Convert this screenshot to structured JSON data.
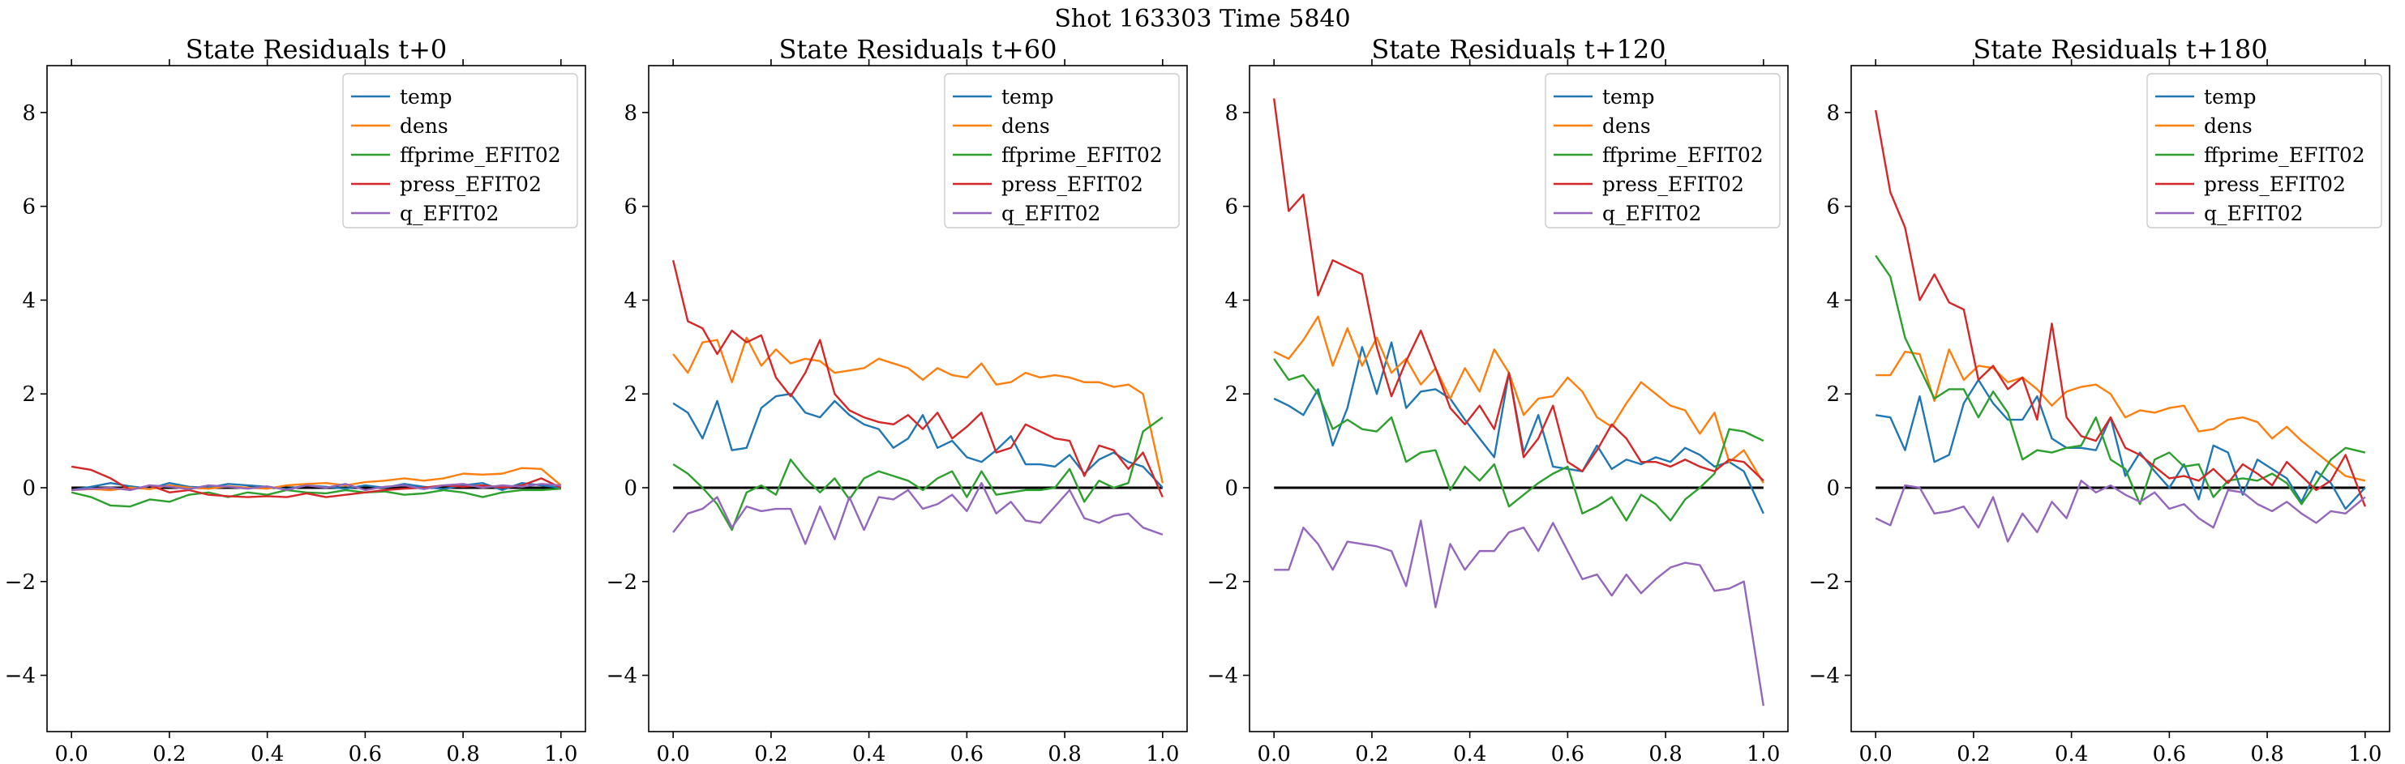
{
  "figure_title": "Shot 163303   Time 5840",
  "series_colors": {
    "temp": "#1f77b4",
    "dens": "#ff7f0e",
    "ffprime_EFIT02": "#2ca02c",
    "press_EFIT02": "#d62728",
    "q_EFIT02": "#9467bd"
  },
  "reference_line_color": "#000000",
  "chart_data": [
    {
      "type": "line",
      "title": "State Residuals t+0",
      "xlabel": "",
      "ylabel": "",
      "xlim": [
        -0.05,
        1.05
      ],
      "ylim": [
        -5.2,
        9.0
      ],
      "xticks": [
        0.0,
        0.2,
        0.4,
        0.6,
        0.8,
        1.0
      ],
      "xtick_labels": [
        "0.0",
        "0.2",
        "0.4",
        "0.6",
        "0.8",
        "1.0"
      ],
      "yticks": [
        -4,
        -2,
        0,
        2,
        4,
        6,
        8
      ],
      "ytick_labels": [
        "−4",
        "−2",
        "0",
        "2",
        "4",
        "6",
        "8"
      ],
      "legend_placement": "top-right",
      "reference_line": {
        "y": 0,
        "x": [
          0.0,
          1.0
        ]
      },
      "x": [
        0.0,
        0.04,
        0.08,
        0.12,
        0.16,
        0.2,
        0.24,
        0.28,
        0.32,
        0.36,
        0.4,
        0.44,
        0.48,
        0.52,
        0.56,
        0.6,
        0.64,
        0.68,
        0.72,
        0.76,
        0.8,
        0.84,
        0.88,
        0.92,
        0.96,
        1.0
      ],
      "series": [
        {
          "name": "temp",
          "values": [
            -0.05,
            0.02,
            0.1,
            0.03,
            -0.02,
            0.1,
            0.02,
            0.0,
            0.08,
            0.05,
            0.02,
            -0.03,
            0.05,
            0.02,
            -0.02,
            0.05,
            0.0,
            0.08,
            0.02,
            -0.03,
            0.05,
            0.1,
            -0.05,
            0.1,
            0.05,
            0.0
          ]
        },
        {
          "name": "dens",
          "values": [
            -0.05,
            -0.03,
            -0.05,
            0.0,
            -0.03,
            0.05,
            0.0,
            -0.02,
            0.03,
            0.0,
            -0.02,
            0.05,
            0.08,
            0.1,
            0.05,
            0.12,
            0.15,
            0.2,
            0.15,
            0.2,
            0.3,
            0.28,
            0.3,
            0.42,
            0.4,
            0.05
          ]
        },
        {
          "name": "ffprime_EFIT02",
          "values": [
            -0.1,
            -0.2,
            -0.38,
            -0.4,
            -0.25,
            -0.3,
            -0.15,
            -0.1,
            -0.2,
            -0.1,
            -0.15,
            -0.05,
            -0.1,
            -0.12,
            -0.05,
            -0.1,
            -0.08,
            -0.15,
            -0.12,
            -0.05,
            -0.1,
            -0.2,
            -0.1,
            -0.05,
            -0.05,
            -0.02
          ]
        },
        {
          "name": "press_EFIT02",
          "values": [
            0.45,
            0.38,
            0.2,
            -0.05,
            0.05,
            -0.1,
            -0.05,
            -0.15,
            -0.18,
            -0.2,
            -0.18,
            -0.2,
            -0.12,
            -0.2,
            -0.15,
            -0.1,
            -0.05,
            -0.02,
            0.0,
            0.05,
            0.02,
            0.05,
            0.0,
            0.05,
            0.2,
            0.0
          ]
        },
        {
          "name": "q_EFIT02",
          "values": [
            -0.05,
            -0.02,
            0.0,
            -0.05,
            0.05,
            0.02,
            -0.03,
            0.05,
            0.02,
            -0.02,
            0.03,
            -0.05,
            0.05,
            0.0,
            0.08,
            -0.05,
            0.02,
            0.05,
            -0.03,
            0.05,
            0.08,
            0.0,
            0.05,
            0.02,
            0.08,
            0.05
          ]
        }
      ]
    },
    {
      "type": "line",
      "title": "State Residuals t+60",
      "xlabel": "",
      "ylabel": "",
      "xlim": [
        -0.05,
        1.05
      ],
      "ylim": [
        -5.2,
        9.0
      ],
      "xticks": [
        0.0,
        0.2,
        0.4,
        0.6,
        0.8,
        1.0
      ],
      "xtick_labels": [
        "0.0",
        "0.2",
        "0.4",
        "0.6",
        "0.8",
        "1.0"
      ],
      "yticks": [
        -4,
        -2,
        0,
        2,
        4,
        6,
        8
      ],
      "ytick_labels": [
        "−4",
        "−2",
        "0",
        "2",
        "4",
        "6",
        "8"
      ],
      "legend_placement": "top-right",
      "reference_line": {
        "y": 0,
        "x": [
          0.0,
          1.0
        ]
      },
      "x": [
        0.0,
        0.03,
        0.06,
        0.09,
        0.12,
        0.15,
        0.18,
        0.21,
        0.24,
        0.27,
        0.3,
        0.33,
        0.36,
        0.39,
        0.42,
        0.45,
        0.48,
        0.51,
        0.54,
        0.57,
        0.6,
        0.63,
        0.66,
        0.69,
        0.72,
        0.75,
        0.78,
        0.81,
        0.84,
        0.87,
        0.9,
        0.93,
        0.96,
        1.0
      ],
      "series": [
        {
          "name": "temp",
          "values": [
            1.8,
            1.6,
            1.05,
            1.85,
            0.8,
            0.85,
            1.7,
            1.95,
            2.0,
            1.6,
            1.5,
            1.85,
            1.55,
            1.35,
            1.25,
            0.85,
            1.05,
            1.55,
            0.85,
            1.0,
            0.65,
            0.55,
            0.8,
            1.1,
            0.5,
            0.5,
            0.45,
            0.7,
            0.3,
            0.6,
            0.75,
            0.55,
            0.45,
            0.0
          ]
        },
        {
          "name": "dens",
          "values": [
            2.85,
            2.45,
            3.1,
            3.15,
            2.25,
            3.2,
            2.6,
            2.95,
            2.65,
            2.75,
            2.7,
            2.45,
            2.5,
            2.55,
            2.75,
            2.65,
            2.55,
            2.3,
            2.55,
            2.4,
            2.35,
            2.65,
            2.2,
            2.25,
            2.45,
            2.35,
            2.4,
            2.35,
            2.25,
            2.25,
            2.15,
            2.2,
            2.0,
            0.1
          ]
        },
        {
          "name": "ffprime_EFIT02",
          "values": [
            0.5,
            0.3,
            0.0,
            -0.35,
            -0.9,
            -0.1,
            0.05,
            -0.15,
            0.6,
            0.2,
            -0.1,
            0.2,
            -0.25,
            0.2,
            0.35,
            0.25,
            0.15,
            -0.05,
            0.2,
            0.35,
            -0.2,
            0.35,
            -0.15,
            -0.1,
            -0.05,
            -0.05,
            0.0,
            0.4,
            -0.3,
            0.15,
            0.0,
            0.1,
            1.2,
            1.5
          ]
        },
        {
          "name": "press_EFIT02",
          "values": [
            4.85,
            3.55,
            3.4,
            2.85,
            3.35,
            3.1,
            3.25,
            2.35,
            1.95,
            2.45,
            3.15,
            2.0,
            1.65,
            1.5,
            1.4,
            1.35,
            1.55,
            1.25,
            1.6,
            1.05,
            1.3,
            1.6,
            0.75,
            0.85,
            1.35,
            1.2,
            1.05,
            1.0,
            0.25,
            0.9,
            0.8,
            0.4,
            0.75,
            -0.2
          ]
        },
        {
          "name": "q_EFIT02",
          "values": [
            -0.95,
            -0.55,
            -0.45,
            -0.2,
            -0.85,
            -0.4,
            -0.5,
            -0.45,
            -0.45,
            -1.2,
            -0.4,
            -1.1,
            -0.2,
            -0.9,
            -0.2,
            -0.25,
            -0.05,
            -0.45,
            -0.35,
            -0.15,
            -0.5,
            0.1,
            -0.55,
            -0.3,
            -0.7,
            -0.75,
            -0.4,
            -0.05,
            -0.65,
            -0.75,
            -0.6,
            -0.55,
            -0.85,
            -1.0
          ]
        }
      ]
    },
    {
      "type": "line",
      "title": "State Residuals t+120",
      "xlabel": "",
      "ylabel": "",
      "xlim": [
        -0.05,
        1.05
      ],
      "ylim": [
        -5.2,
        9.0
      ],
      "xticks": [
        0.0,
        0.2,
        0.4,
        0.6,
        0.8,
        1.0
      ],
      "xtick_labels": [
        "0.0",
        "0.2",
        "0.4",
        "0.6",
        "0.8",
        "1.0"
      ],
      "yticks": [
        -4,
        -2,
        0,
        2,
        4,
        6,
        8
      ],
      "ytick_labels": [
        "−4",
        "−2",
        "0",
        "2",
        "4",
        "6",
        "8"
      ],
      "legend_placement": "top-right",
      "reference_line": {
        "y": 0,
        "x": [
          0.0,
          1.0
        ]
      },
      "x": [
        0.0,
        0.03,
        0.06,
        0.09,
        0.12,
        0.15,
        0.18,
        0.21,
        0.24,
        0.27,
        0.3,
        0.33,
        0.36,
        0.39,
        0.42,
        0.45,
        0.48,
        0.51,
        0.54,
        0.57,
        0.6,
        0.63,
        0.66,
        0.69,
        0.72,
        0.75,
        0.78,
        0.81,
        0.84,
        0.87,
        0.9,
        0.93,
        0.96,
        1.0
      ],
      "series": [
        {
          "name": "temp",
          "values": [
            1.9,
            1.75,
            1.55,
            2.1,
            0.9,
            1.7,
            3.0,
            2.0,
            3.1,
            1.7,
            2.05,
            2.1,
            1.9,
            1.45,
            1.05,
            0.65,
            2.45,
            0.75,
            1.55,
            0.45,
            0.4,
            0.35,
            0.9,
            0.4,
            0.6,
            0.5,
            0.65,
            0.55,
            0.85,
            0.7,
            0.45,
            0.55,
            0.35,
            -0.55
          ]
        },
        {
          "name": "dens",
          "values": [
            2.9,
            2.75,
            3.15,
            3.65,
            2.6,
            3.4,
            2.6,
            3.2,
            2.45,
            2.75,
            2.2,
            2.55,
            1.9,
            2.55,
            2.05,
            2.95,
            2.45,
            1.55,
            1.9,
            1.95,
            2.35,
            2.05,
            1.5,
            1.3,
            1.8,
            2.25,
            2.0,
            1.75,
            1.65,
            1.15,
            1.6,
            0.55,
            0.8,
            0.1
          ]
        },
        {
          "name": "ffprime_EFIT02",
          "values": [
            2.75,
            2.3,
            2.4,
            2.0,
            1.25,
            1.45,
            1.25,
            1.2,
            1.5,
            0.55,
            0.75,
            0.8,
            -0.05,
            0.45,
            0.15,
            0.5,
            -0.4,
            -0.15,
            0.1,
            0.3,
            0.45,
            -0.55,
            -0.4,
            -0.2,
            -0.7,
            -0.15,
            -0.35,
            -0.7,
            -0.25,
            0.0,
            0.3,
            1.25,
            1.2,
            1.0
          ]
        },
        {
          "name": "press_EFIT02",
          "values": [
            8.3,
            5.9,
            6.25,
            4.1,
            4.85,
            4.7,
            4.55,
            3.0,
            1.95,
            2.7,
            3.35,
            2.55,
            1.7,
            1.35,
            1.75,
            1.25,
            2.45,
            0.65,
            1.05,
            1.75,
            0.55,
            0.35,
            0.8,
            1.35,
            1.05,
            0.55,
            0.55,
            0.45,
            0.6,
            0.45,
            0.35,
            0.6,
            0.55,
            0.15
          ]
        },
        {
          "name": "q_EFIT02",
          "values": [
            -1.75,
            -1.75,
            -0.85,
            -1.2,
            -1.75,
            -1.15,
            -1.2,
            -1.25,
            -1.35,
            -2.1,
            -0.7,
            -2.55,
            -1.2,
            -1.75,
            -1.35,
            -1.35,
            -0.95,
            -0.85,
            -1.35,
            -0.75,
            -1.35,
            -1.95,
            -1.85,
            -2.3,
            -1.85,
            -2.25,
            -1.95,
            -1.7,
            -1.6,
            -1.65,
            -2.2,
            -2.15,
            -2.0,
            -4.65
          ]
        }
      ]
    },
    {
      "type": "line",
      "title": "State Residuals t+180",
      "xlabel": "",
      "ylabel": "",
      "xlim": [
        -0.05,
        1.05
      ],
      "ylim": [
        -5.2,
        9.0
      ],
      "xticks": [
        0.0,
        0.2,
        0.4,
        0.6,
        0.8,
        1.0
      ],
      "xtick_labels": [
        "0.0",
        "0.2",
        "0.4",
        "0.6",
        "0.8",
        "1.0"
      ],
      "yticks": [
        -4,
        -2,
        0,
        2,
        4,
        6,
        8
      ],
      "ytick_labels": [
        "−4",
        "−2",
        "0",
        "2",
        "4",
        "6",
        "8"
      ],
      "legend_placement": "top-right",
      "reference_line": {
        "y": 0,
        "x": [
          0.0,
          1.0
        ]
      },
      "x": [
        0.0,
        0.03,
        0.06,
        0.09,
        0.12,
        0.15,
        0.18,
        0.21,
        0.24,
        0.27,
        0.3,
        0.33,
        0.36,
        0.39,
        0.42,
        0.45,
        0.48,
        0.51,
        0.54,
        0.57,
        0.6,
        0.63,
        0.66,
        0.69,
        0.72,
        0.75,
        0.78,
        0.81,
        0.84,
        0.87,
        0.9,
        0.93,
        0.96,
        1.0
      ],
      "series": [
        {
          "name": "temp",
          "values": [
            1.55,
            1.5,
            0.8,
            1.95,
            0.55,
            0.7,
            1.8,
            2.3,
            1.8,
            1.45,
            1.45,
            1.95,
            1.05,
            0.85,
            0.85,
            0.8,
            1.5,
            0.25,
            0.75,
            0.35,
            0.0,
            0.5,
            -0.25,
            0.9,
            0.75,
            -0.15,
            0.6,
            0.4,
            0.2,
            -0.3,
            0.35,
            0.1,
            -0.45,
            0.0
          ]
        },
        {
          "name": "dens",
          "values": [
            2.4,
            2.4,
            2.9,
            2.85,
            1.85,
            2.95,
            2.3,
            2.6,
            2.55,
            2.25,
            2.35,
            2.1,
            1.75,
            2.05,
            2.15,
            2.2,
            2.0,
            1.5,
            1.65,
            1.6,
            1.7,
            1.75,
            1.2,
            1.25,
            1.45,
            1.5,
            1.4,
            1.05,
            1.3,
            1.0,
            0.75,
            0.5,
            0.25,
            0.15
          ]
        },
        {
          "name": "ffprime_EFIT02",
          "values": [
            4.95,
            4.5,
            3.2,
            2.55,
            1.9,
            2.1,
            2.1,
            1.5,
            2.05,
            1.6,
            0.6,
            0.8,
            0.75,
            0.85,
            0.9,
            1.5,
            0.6,
            0.4,
            -0.35,
            0.6,
            0.75,
            0.45,
            0.5,
            -0.2,
            0.15,
            0.2,
            0.15,
            0.3,
            0.1,
            -0.35,
            0.1,
            0.6,
            0.85,
            0.75
          ]
        },
        {
          "name": "press_EFIT02",
          "values": [
            8.05,
            6.3,
            5.55,
            4.0,
            4.55,
            3.95,
            3.8,
            2.3,
            2.6,
            2.1,
            2.35,
            1.45,
            3.5,
            1.5,
            1.1,
            1.0,
            1.5,
            0.85,
            0.7,
            0.45,
            0.2,
            0.25,
            0.15,
            0.4,
            0.1,
            0.5,
            0.3,
            0.05,
            0.55,
            0.25,
            -0.05,
            0.15,
            0.7,
            -0.4
          ]
        },
        {
          "name": "q_EFIT02",
          "values": [
            -0.65,
            -0.8,
            0.05,
            0.0,
            -0.55,
            -0.5,
            -0.4,
            -0.85,
            -0.2,
            -1.15,
            -0.55,
            -0.95,
            -0.3,
            -0.65,
            0.15,
            -0.1,
            0.05,
            -0.15,
            -0.3,
            -0.1,
            -0.45,
            -0.35,
            -0.65,
            -0.85,
            -0.05,
            -0.1,
            -0.35,
            -0.5,
            -0.3,
            -0.55,
            -0.75,
            -0.5,
            -0.55,
            -0.2
          ]
        }
      ]
    }
  ]
}
